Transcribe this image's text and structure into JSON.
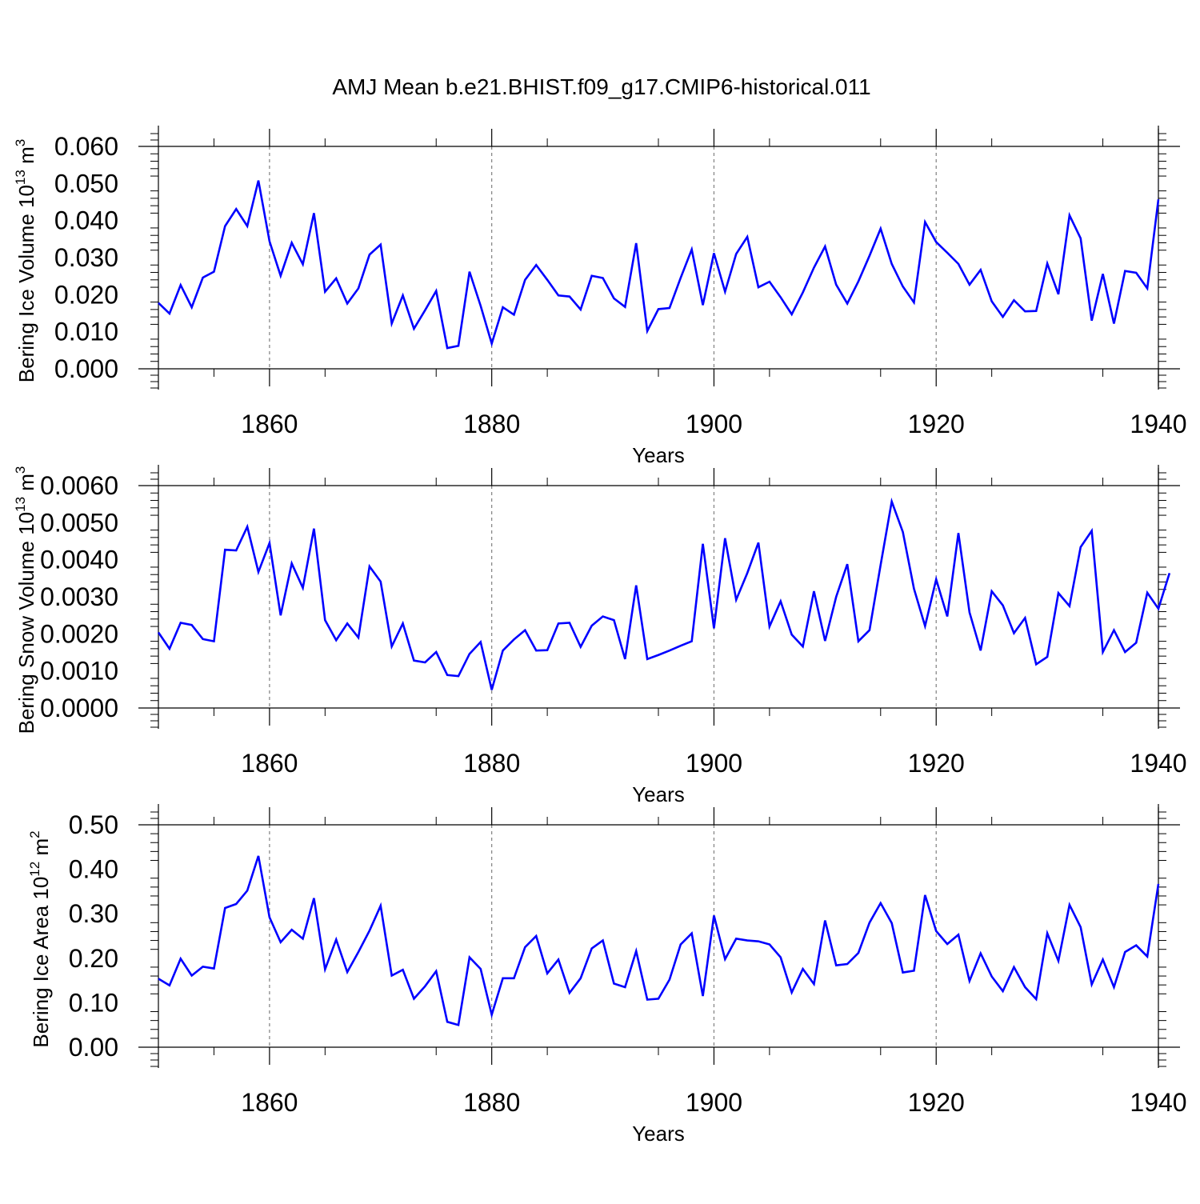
{
  "figure_title": "AMJ Mean b.e21.BHIST.f09_g17.CMIP6-historical.011",
  "colors": {
    "line": "#0000ff",
    "axis": "#000000",
    "grid": "#808080",
    "background": "#ffffff"
  },
  "chart_data": [
    {
      "type": "line",
      "title": "AMJ Mean b.e21.BHIST.f09_g17.CMIP6-historical.011",
      "xlabel": "Years",
      "ylabel": {
        "main": "Bering Ice Volume 10",
        "sup": "13",
        "unit": " m",
        "unit_sup": "3"
      },
      "xlim": [
        1850,
        1940
      ],
      "ylim": [
        0,
        0.06
      ],
      "xticks": [
        1860,
        1880,
        1900,
        1920,
        1940
      ],
      "xtick_labels": [
        "1860",
        "1880",
        "1900",
        "1920",
        "1940"
      ],
      "yticks": [
        0,
        0.01,
        0.02,
        0.03,
        0.04,
        0.05,
        0.06
      ],
      "ytick_labels": [
        "0.000",
        "0.010",
        "0.020",
        "0.030",
        "0.040",
        "0.050",
        "0.060"
      ],
      "grid": "dashed vertical at major x ticks",
      "series": [
        {
          "name": "Bering Ice Volume",
          "x_start": 1850,
          "values": [
            0.0178,
            0.0149,
            0.0226,
            0.0166,
            0.0246,
            0.0262,
            0.0385,
            0.0431,
            0.0385,
            0.0508,
            0.0344,
            0.0251,
            0.034,
            0.0282,
            0.042,
            0.0208,
            0.0244,
            0.0176,
            0.0217,
            0.0308,
            0.0335,
            0.0122,
            0.0198,
            0.0108,
            0.0158,
            0.021,
            0.0056,
            0.0062,
            0.0262,
            0.017,
            0.0068,
            0.0166,
            0.0146,
            0.024,
            0.028,
            0.024,
            0.0198,
            0.0195,
            0.016,
            0.0251,
            0.0245,
            0.019,
            0.0167,
            0.0339,
            0.0102,
            0.0161,
            0.0164,
            0.0245,
            0.0322,
            0.0172,
            0.0312,
            0.0208,
            0.031,
            0.0356,
            0.022,
            0.0235,
            0.0193,
            0.0147,
            0.0206,
            0.0273,
            0.033,
            0.0227,
            0.0176,
            0.0236,
            0.0305,
            0.0378,
            0.0283,
            0.0222,
            0.0179,
            0.0396,
            0.0342,
            0.0313,
            0.0283,
            0.0227,
            0.0267,
            0.0182,
            0.014,
            0.0185,
            0.0155,
            0.0156,
            0.0284,
            0.0201,
            0.0414,
            0.0352,
            0.013,
            0.0256,
            0.0122,
            0.0264,
            0.0259,
            0.0217,
            0.0457
          ]
        }
      ]
    },
    {
      "type": "line",
      "xlabel": "Years",
      "ylabel": {
        "main": "Bering Snow Volume 10",
        "sup": "13",
        "unit": " m",
        "unit_sup": "3"
      },
      "xlim": [
        1850,
        1940
      ],
      "ylim": [
        0,
        0.006
      ],
      "xticks": [
        1860,
        1880,
        1900,
        1920,
        1940
      ],
      "xtick_labels": [
        "1860",
        "1880",
        "1900",
        "1920",
        "1940"
      ],
      "yticks": [
        0,
        0.001,
        0.002,
        0.003,
        0.004,
        0.005,
        0.006
      ],
      "ytick_labels": [
        "0.0000",
        "0.0010",
        "0.0020",
        "0.0030",
        "0.0040",
        "0.0050",
        "0.0060"
      ],
      "grid": "dashed vertical at major x ticks",
      "series": [
        {
          "name": "Bering Snow Volume",
          "x_start": 1850,
          "values": [
            0.00204,
            0.0016,
            0.0023,
            0.00224,
            0.00186,
            0.0018,
            0.00427,
            0.00425,
            0.00489,
            0.00367,
            0.00445,
            0.0025,
            0.0039,
            0.00324,
            0.00484,
            0.00237,
            0.00183,
            0.00228,
            0.0019,
            0.00382,
            0.00341,
            0.00166,
            0.00228,
            0.00128,
            0.00123,
            0.00151,
            0.00089,
            0.00086,
            0.00146,
            0.00178,
            0.00049,
            0.00155,
            0.00185,
            0.0021,
            0.00155,
            0.00156,
            0.00228,
            0.0023,
            0.00165,
            0.00222,
            0.00247,
            0.00237,
            0.00132,
            0.00331,
            0.00132,
            0.00143,
            0.00155,
            0.00168,
            0.0018,
            0.00443,
            0.00215,
            0.00458,
            0.00292,
            0.00364,
            0.00446,
            0.0022,
            0.00288,
            0.00198,
            0.00166,
            0.00315,
            0.00181,
            0.003,
            0.00388,
            0.0018,
            0.0021,
            0.00386,
            0.00557,
            0.00475,
            0.00322,
            0.00221,
            0.00347,
            0.00247,
            0.00472,
            0.00258,
            0.00155,
            0.00315,
            0.00277,
            0.00202,
            0.00243,
            0.00118,
            0.00138,
            0.0031,
            0.00275,
            0.00434,
            0.00478,
            0.00151,
            0.0021,
            0.00151,
            0.00176,
            0.00311,
            0.00268,
            0.00364
          ]
        }
      ]
    },
    {
      "type": "line",
      "xlabel": "Years",
      "ylabel": {
        "main": "Bering Ice Area 10",
        "sup": "12",
        "unit": " m",
        "unit_sup": "2"
      },
      "xlim": [
        1850,
        1940
      ],
      "ylim": [
        0,
        0.5
      ],
      "xticks": [
        1860,
        1880,
        1900,
        1920,
        1940
      ],
      "xtick_labels": [
        "1860",
        "1880",
        "1900",
        "1920",
        "1940"
      ],
      "yticks": [
        0,
        0.1,
        0.2,
        0.3,
        0.4,
        0.5
      ],
      "ytick_labels": [
        "0.00",
        "0.10",
        "0.20",
        "0.30",
        "0.40",
        "0.50"
      ],
      "grid": "dashed vertical at major x ticks",
      "series": [
        {
          "name": "Bering Ice Area",
          "x_start": 1850,
          "values": [
            0.154,
            0.139,
            0.199,
            0.161,
            0.181,
            0.177,
            0.313,
            0.322,
            0.352,
            0.43,
            0.292,
            0.236,
            0.264,
            0.244,
            0.335,
            0.175,
            0.242,
            0.169,
            0.214,
            0.262,
            0.318,
            0.161,
            0.174,
            0.109,
            0.137,
            0.171,
            0.057,
            0.05,
            0.202,
            0.176,
            0.073,
            0.155,
            0.155,
            0.225,
            0.25,
            0.166,
            0.197,
            0.122,
            0.155,
            0.222,
            0.24,
            0.143,
            0.135,
            0.216,
            0.107,
            0.109,
            0.152,
            0.231,
            0.256,
            0.115,
            0.296,
            0.198,
            0.244,
            0.24,
            0.238,
            0.231,
            0.202,
            0.123,
            0.176,
            0.142,
            0.285,
            0.184,
            0.187,
            0.212,
            0.28,
            0.324,
            0.279,
            0.168,
            0.172,
            0.342,
            0.261,
            0.232,
            0.253,
            0.149,
            0.211,
            0.159,
            0.126,
            0.18,
            0.135,
            0.108,
            0.256,
            0.194,
            0.32,
            0.27,
            0.141,
            0.197,
            0.135,
            0.214,
            0.229,
            0.204,
            0.367
          ]
        }
      ]
    }
  ]
}
